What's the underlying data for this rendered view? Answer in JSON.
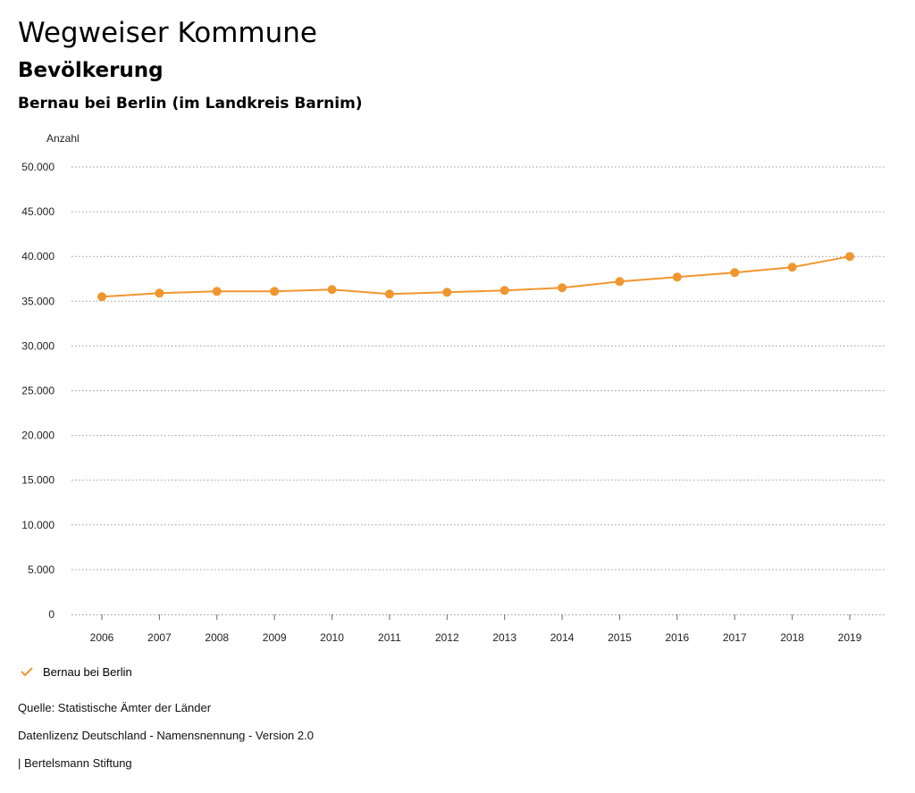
{
  "header": {
    "title": "Wegweiser Kommune",
    "subtitle": "Bevölkerung",
    "chart_heading": "Bernau bei Berlin (im Landkreis Barnim)"
  },
  "colors": {
    "series": "#f0962e",
    "grid": "#9a9a9a",
    "text": "#222222"
  },
  "chart_data": {
    "type": "line",
    "title": "Bernau bei Berlin (im Landkreis Barnim)",
    "ylabel": "Anzahl",
    "xlabel": "",
    "ylim": [
      0,
      50000
    ],
    "yticks": [
      0,
      5000,
      10000,
      15000,
      20000,
      25000,
      30000,
      35000,
      40000,
      45000,
      50000
    ],
    "ytick_labels": [
      "0",
      "5.000",
      "10.000",
      "15.000",
      "20.000",
      "25.000",
      "30.000",
      "35.000",
      "40.000",
      "45.000",
      "50.000"
    ],
    "x": [
      "2006",
      "2007",
      "2008",
      "2009",
      "2010",
      "2011",
      "2012",
      "2013",
      "2014",
      "2015",
      "2016",
      "2017",
      "2018",
      "2019"
    ],
    "series": [
      {
        "name": "Bernau bei Berlin",
        "values": [
          35500,
          35900,
          36100,
          36100,
          36300,
          35800,
          36000,
          36200,
          36500,
          37200,
          37700,
          38200,
          38800,
          40000
        ]
      }
    ],
    "grid": true,
    "legend_position": "bottom-left"
  },
  "legend": {
    "label": "Bernau bei Berlin",
    "icon": "check-icon"
  },
  "footer": {
    "source": "Quelle: Statistische Ämter der Länder",
    "license": "Datenlizenz Deutschland - Namensnennung - Version 2.0",
    "publisher": "| Bertelsmann Stiftung"
  }
}
